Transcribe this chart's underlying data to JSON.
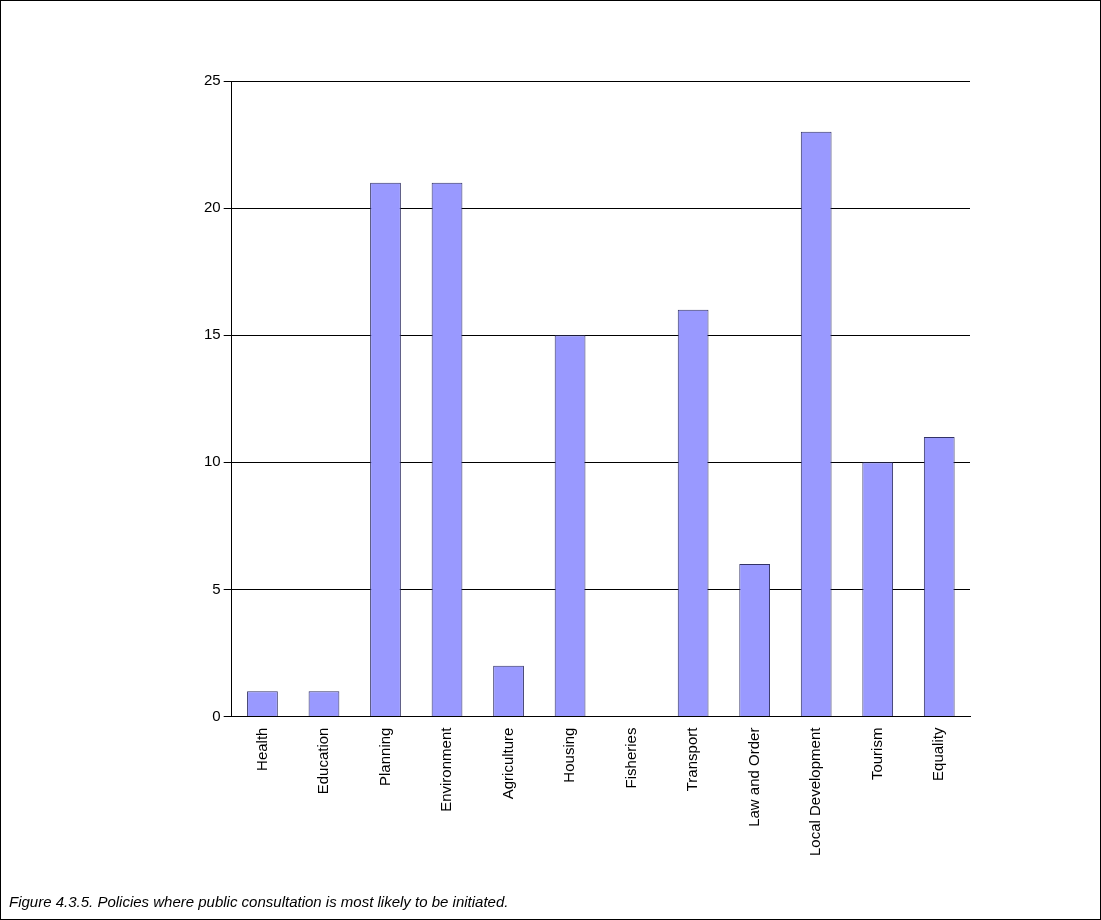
{
  "chart_data": {
    "type": "bar",
    "categories": [
      "Health",
      "Education",
      "Planning",
      "Environment",
      "Agriculture",
      "Housing",
      "Fisheries",
      "Transport",
      "Law and Order",
      "Local Development",
      "Tourism",
      "Equality"
    ],
    "values": [
      1,
      1,
      21,
      21,
      2,
      15,
      0,
      16,
      6,
      23,
      10,
      11
    ],
    "color": "#9999ff",
    "ylim": [
      0,
      25
    ],
    "yticks": [
      0,
      5,
      10,
      15,
      20,
      25
    ],
    "grid": "y",
    "legend": false,
    "annotations": [
      "Figure 4.3.5. Policies where public consultation is most likely to be initiated."
    ]
  }
}
